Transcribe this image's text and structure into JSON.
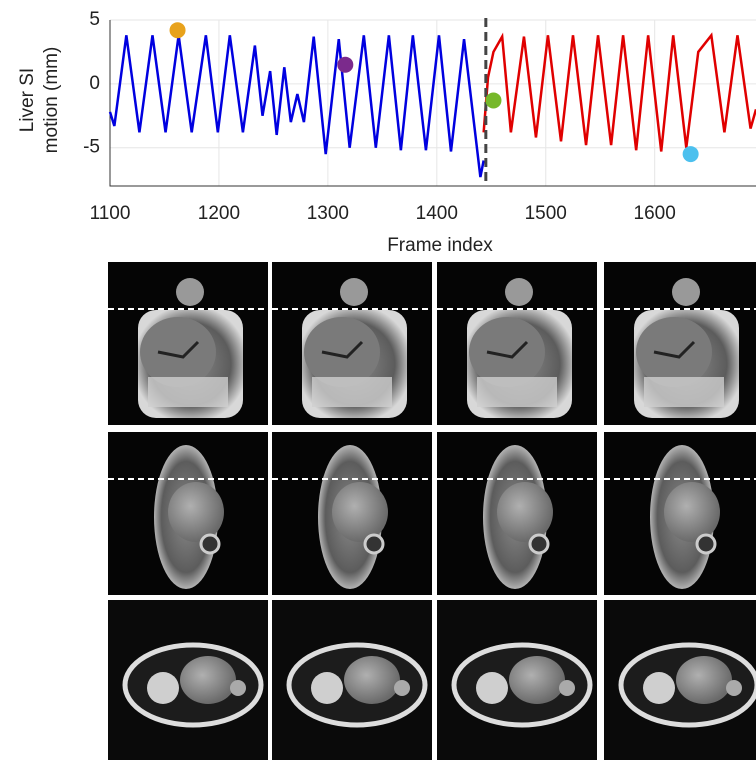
{
  "chart_data": {
    "type": "line",
    "xlabel": "Frame index",
    "ylabel": [
      "Liver SI",
      "motion (mm)"
    ],
    "xlim": [
      1100,
      1693
    ],
    "ylim": [
      -8,
      5
    ],
    "xticks": [
      1100,
      1200,
      1300,
      1400,
      1500,
      1600
    ],
    "yticks": [
      -5,
      0,
      5
    ],
    "grid": true,
    "vline": 1445,
    "series": [
      {
        "color": "#0000e0",
        "x": [
          1100,
          1104,
          1115,
          1127,
          1139,
          1151,
          1163,
          1175,
          1188,
          1199,
          1210,
          1222,
          1233,
          1240,
          1247,
          1253,
          1260,
          1266,
          1272,
          1278,
          1287,
          1298,
          1310,
          1320,
          1333,
          1344,
          1356,
          1367,
          1378,
          1390,
          1402,
          1413,
          1425,
          1440,
          1443
        ],
        "values": [
          -2.2,
          -3.3,
          3.8,
          -3.8,
          3.8,
          -3.8,
          3.8,
          -3.8,
          3.8,
          -3.8,
          3.8,
          -3.8,
          3.0,
          -2.5,
          1.0,
          -4.0,
          1.3,
          -3.0,
          -0.8,
          -3.0,
          3.7,
          -5.5,
          3.5,
          -5.0,
          3.8,
          -5.0,
          3.8,
          -5.2,
          3.8,
          -5.2,
          3.8,
          -5.3,
          3.5,
          -7.3,
          -6.0
        ]
      },
      {
        "color": "#e00000",
        "x": [
          1443,
          1447,
          1452,
          1460,
          1468,
          1480,
          1491,
          1502,
          1514,
          1525,
          1537,
          1548,
          1560,
          1571,
          1583,
          1594,
          1606,
          1617,
          1629,
          1640,
          1652,
          1664,
          1676,
          1688,
          1693
        ],
        "values": [
          -3.8,
          0.5,
          2.5,
          3.7,
          -3.8,
          3.7,
          -4.2,
          3.8,
          -4.5,
          3.8,
          -4.8,
          3.8,
          -4.8,
          3.8,
          -5.2,
          3.8,
          -5.3,
          3.8,
          -5.0,
          2.5,
          3.8,
          -3.8,
          3.8,
          -3.5,
          -2.0
        ]
      }
    ],
    "markers": [
      {
        "x": 1162,
        "y": 4.2,
        "color": "#e8a21c"
      },
      {
        "x": 1316,
        "y": 1.5,
        "color": "#7b2a8c"
      },
      {
        "x": 1452,
        "y": -1.3,
        "color": "#76b82a"
      },
      {
        "x": 1633,
        "y": -5.5,
        "color": "#4cc0ee"
      }
    ]
  }
}
